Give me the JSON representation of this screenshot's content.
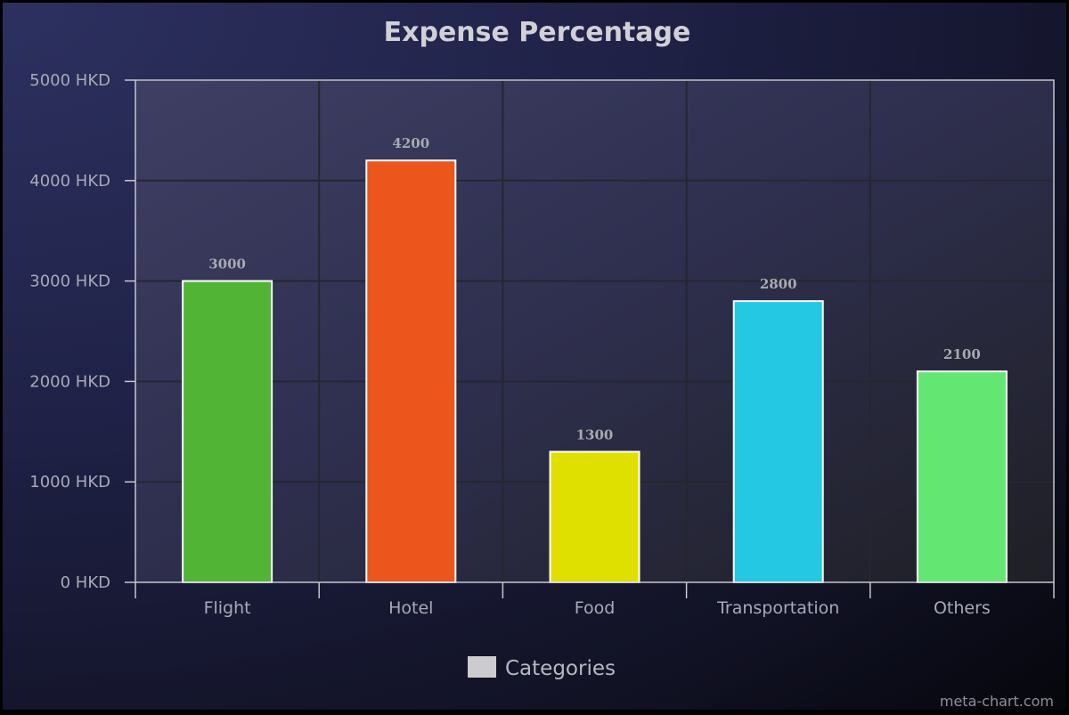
{
  "chart_data": {
    "type": "bar",
    "title": "Expense Percentage",
    "categories": [
      "Flight",
      "Hotel",
      "Food",
      "Transportation",
      "Others"
    ],
    "values": [
      3000,
      4200,
      1300,
      2800,
      2100
    ],
    "colors": [
      "#52b435",
      "#ec561c",
      "#dfe000",
      "#24c8e3",
      "#64e772"
    ],
    "ylim": [
      0,
      5000
    ],
    "yticks": [
      0,
      1000,
      2000,
      3000,
      4000,
      5000
    ],
    "ytick_suffix": " HKD",
    "data_labels": true,
    "grid": true,
    "legend": {
      "placement": "bottom-center",
      "entries": [
        "Categories"
      ],
      "swatch_color": "#cccccc"
    }
  },
  "credit": "meta-chart.com"
}
